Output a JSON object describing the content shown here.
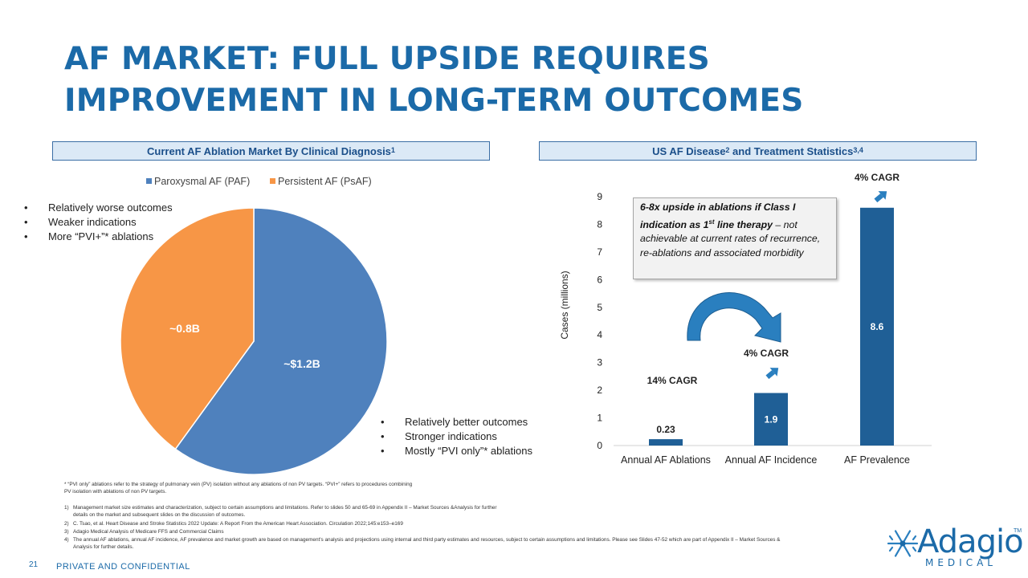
{
  "slide": {
    "title": "AF MARKET: FULL UPSIDE REQUIRES IMPROVEMENT IN LONG-TERM OUTCOMES",
    "page_number": "21",
    "confidential": "PRIVATE AND CONFIDENTIAL",
    "logo_name": "Adagio",
    "logo_sub": "MEDICAL",
    "logo_tm": "TM"
  },
  "left_panel": {
    "header_text": "Current AF Ablation Market By Clinical Diagnosis",
    "header_sup": "1",
    "bullets_top": [
      "Relatively worse outcomes",
      "Weaker indications",
      "More “PVI+”* ablations"
    ],
    "bullets_bottom": [
      "Relatively better outcomes",
      "Stronger indications",
      "Mostly “PVI only”* ablations"
    ],
    "bullet_glyph": "•"
  },
  "right_panel": {
    "header_pre": "US AF Disease",
    "header_sup1": "2",
    "header_mid": " and Treatment Statistics",
    "header_sup2": "3,4",
    "callout_bold_1": "6-8x upside in ablations if Class I indication as 1",
    "callout_bold_sup": "st",
    "callout_bold_2": " line therapy",
    "callout_rest": " – not achievable at current rates of recurrence, re-ablations and associated morbidity"
  },
  "colors": {
    "title": "#1b6aa8",
    "paf": "#4f81bd",
    "psaf": "#f79646",
    "bar": "#1f5f96",
    "arrow": "#2a7fbf"
  },
  "chart_data": [
    {
      "type": "pie",
      "legend_position": "top",
      "categories": [
        "Paroxysmal AF (PAF)",
        "Persistent AF (PsAF)"
      ],
      "values": [
        1.2,
        0.8
      ],
      "labels": [
        "~$1.2B",
        "~0.8B"
      ]
    },
    {
      "type": "bar",
      "categories": [
        "Annual AF Ablations",
        "Annual AF Incidence",
        "AF Prevalence"
      ],
      "values": [
        0.23,
        1.9,
        8.6
      ],
      "value_labels": [
        "0.23",
        "1.9",
        "8.6"
      ],
      "ylabel": "Cases (millions)",
      "ylim": [
        0,
        9
      ],
      "yticks": [
        "0",
        "1",
        "2",
        "3",
        "4",
        "5",
        "6",
        "7",
        "8",
        "9"
      ],
      "annotations": [
        "14% CAGR",
        "4% CAGR",
        "4% CAGR"
      ]
    }
  ],
  "footnotes": {
    "star": "* “PVI only” ablations refer to the strategy of pulmonary vein (PV) isolation without any ablations of non PV targets. “PVI+” refers to procedures combining PV isolation with ablations of non PV targets.",
    "notes": [
      {
        "num": "1)",
        "text": "Management market size estimates and characterization, subject to certain assumptions and limitations. Refer to slides 50 and 65-69 in Appendix II – Market Sources &Analysis for further details on the market and subsequent slides on the discussion of outcomes."
      },
      {
        "num": "2)",
        "text": "C. Tsao, et al. Heart Disease and Stroke Statistics 2022 Update: A Report From the American Heart Association. Circulation 2022;145:e153–e169"
      },
      {
        "num": "3)",
        "text": "Adagio Medical Analysis of Medicare FFS and Commercial Claims"
      },
      {
        "num": "4)",
        "text": "The annual AF ablations, annual AF incidence, AF prevalence and market growth are based on management's analysis and projections using internal and third party estimates and resources, subject to certain assumptions and limitations. Please see Slides 47-52 which are part of Appendix II – Market Sources & Analysis for further details."
      }
    ]
  }
}
